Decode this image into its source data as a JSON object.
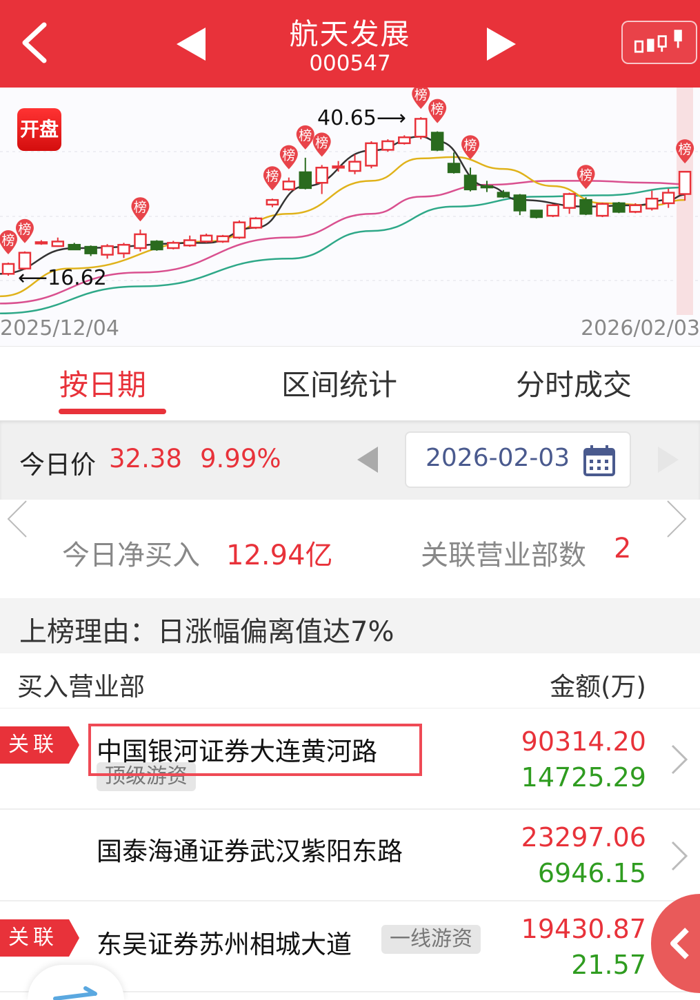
{
  "header": {
    "title": "航天发展",
    "code": "000547",
    "back_icon": "chevron-left-icon",
    "prev_icon": "triangle-left-icon",
    "next_icon": "triangle-right-icon",
    "kline_icon": "candlestick-icon"
  },
  "chart": {
    "badge": "开盘",
    "start_date": "2025/12/04",
    "end_date": "2026/02/03",
    "high_label": "40.65",
    "low_label": "16.62",
    "marker_label": "榜",
    "colors": {
      "up": "#e8323a",
      "down": "#2a6b1e",
      "ma5": "#333333",
      "ma10": "#e0b21a",
      "ma20": "#d9508f",
      "ma30": "#2ea888"
    }
  },
  "chart_data": {
    "type": "candlestick",
    "candles_ohlc": [
      [
        16.9,
        18.4,
        18.6,
        16.62
      ],
      [
        17.7,
        20.1,
        20.3,
        17.5
      ],
      [
        21.6,
        21.7,
        22.0,
        21.3
      ],
      [
        21.1,
        21.8,
        22.4,
        21.0
      ],
      [
        21.3,
        20.6,
        21.6,
        20.5
      ],
      [
        21.0,
        20.0,
        21.2,
        19.6
      ],
      [
        19.8,
        21.1,
        21.4,
        19.2
      ],
      [
        20.0,
        21.3,
        21.6,
        19.3
      ],
      [
        20.8,
        22.9,
        23.6,
        20.3
      ],
      [
        21.8,
        20.6,
        22.0,
        20.4
      ],
      [
        20.8,
        21.6,
        21.9,
        20.6
      ],
      [
        21.2,
        22.0,
        22.7,
        21.0
      ],
      [
        21.8,
        22.7,
        23.0,
        21.6
      ],
      [
        21.8,
        22.6,
        22.8,
        21.6
      ],
      [
        22.4,
        24.7,
        25.0,
        22.2
      ],
      [
        23.9,
        25.3,
        25.5,
        23.7
      ],
      [
        27.4,
        28.1,
        28.3,
        27.0
      ],
      [
        29.7,
        30.9,
        31.5,
        29.5
      ],
      [
        32.3,
        29.9,
        34.5,
        29.7
      ],
      [
        30.7,
        33.0,
        33.4,
        29.0
      ],
      [
        33.1,
        33.2,
        34.0,
        32.4
      ],
      [
        32.5,
        33.9,
        35.0,
        32.0
      ],
      [
        33.3,
        36.7,
        37.0,
        32.9
      ],
      [
        35.7,
        37.0,
        37.3,
        35.4
      ],
      [
        36.7,
        37.6,
        37.9,
        36.5
      ],
      [
        37.7,
        40.4,
        40.65,
        37.3
      ],
      [
        38.3,
        35.7,
        38.5,
        35.5
      ],
      [
        33.6,
        32.3,
        35.3,
        32.1
      ],
      [
        31.8,
        29.7,
        33.0,
        29.4
      ],
      [
        30.2,
        30.1,
        31.0,
        29.3
      ],
      [
        29.2,
        28.6,
        29.6,
        28.4
      ],
      [
        28.8,
        26.5,
        29.0,
        25.8
      ],
      [
        26.5,
        25.5,
        26.6,
        25.3
      ],
      [
        25.7,
        27.3,
        27.5,
        25.5
      ],
      [
        26.9,
        29.0,
        29.2,
        26.0
      ],
      [
        28.1,
        26.0,
        28.5,
        25.8
      ],
      [
        25.7,
        27.5,
        27.7,
        25.5
      ],
      [
        27.6,
        26.3,
        27.8,
        26.1
      ],
      [
        26.3,
        27.3,
        27.6,
        26.1
      ],
      [
        26.8,
        28.3,
        29.5,
        26.5
      ],
      [
        27.6,
        29.2,
        29.8,
        26.9
      ],
      [
        29.0,
        32.38,
        32.38,
        28.0
      ]
    ],
    "list_markers": [
      0,
      1,
      8,
      16,
      17,
      18,
      19,
      25,
      26,
      28,
      35,
      41
    ],
    "ma": {
      "ma5": [
        [
          -0.5,
          16.9
        ],
        [
          4,
          20.8
        ],
        [
          12,
          21.6
        ],
        [
          15,
          23.9
        ],
        [
          18,
          30.2
        ],
        [
          22,
          35.6
        ],
        [
          25,
          37.7
        ],
        [
          26,
          37.0
        ],
        [
          29,
          30.2
        ],
        [
          31,
          28.1
        ],
        [
          35,
          27.1
        ],
        [
          38,
          27.3
        ],
        [
          40,
          28.1
        ],
        [
          41,
          28.9
        ]
      ],
      "ma10": [
        [
          -0.5,
          13.5
        ],
        [
          3.7,
          17.7
        ],
        [
          12,
          21.8
        ],
        [
          17,
          26.0
        ],
        [
          22,
          31.0
        ],
        [
          25,
          34.4
        ],
        [
          27,
          34.6
        ],
        [
          30,
          32.8
        ],
        [
          33,
          30.2
        ],
        [
          36,
          27.6
        ],
        [
          39,
          27.3
        ],
        [
          41,
          28.1
        ]
      ],
      "ma20": [
        [
          -0.5,
          12.4
        ],
        [
          8,
          17.1
        ],
        [
          17,
          22.4
        ],
        [
          22,
          26.0
        ],
        [
          25,
          28.6
        ],
        [
          29,
          30.4
        ],
        [
          33,
          31.0
        ],
        [
          35,
          31.0
        ],
        [
          39,
          30.7
        ],
        [
          41,
          30.5
        ]
      ],
      "ma30": [
        [
          -0.5,
          10.9
        ],
        [
          8,
          15.0
        ],
        [
          17,
          19.2
        ],
        [
          22,
          23.4
        ],
        [
          27,
          27.1
        ],
        [
          32,
          28.6
        ],
        [
          36,
          28.8
        ],
        [
          41,
          30.0
        ]
      ]
    }
  },
  "tabs": [
    {
      "label": "按日期",
      "active": true
    },
    {
      "label": "区间统计"
    },
    {
      "label": "分时成交"
    }
  ],
  "price_bar": {
    "label": "今日价",
    "price": "32.38",
    "change": "9.99%",
    "date": "2026-02-03",
    "calendar_icon": "calendar-icon"
  },
  "stats": {
    "net_buy_label": "今日净买入",
    "net_buy_value": "12.94亿",
    "branches_label": "关联营业部数",
    "branches_value": "2"
  },
  "reason": "上榜理由：日涨幅偏离值达7%",
  "table": {
    "col_name": "买入营业部",
    "col_amount": "金额(万)",
    "rows": [
      {
        "tag": "关联",
        "name": "中国银河证券大连黄河路",
        "chip": "顶级游资",
        "buy": "90314.20",
        "sell": "14725.29",
        "highlighted": true
      },
      {
        "tag": "",
        "name": "国泰海通证券武汉紫阳东路",
        "chip": "",
        "buy": "23297.06",
        "sell": "6946.15"
      },
      {
        "tag": "关联",
        "name": "东吴证券苏州相城大道",
        "chip": "一线游资",
        "buy": "19430.87",
        "sell": "21.57"
      }
    ]
  }
}
